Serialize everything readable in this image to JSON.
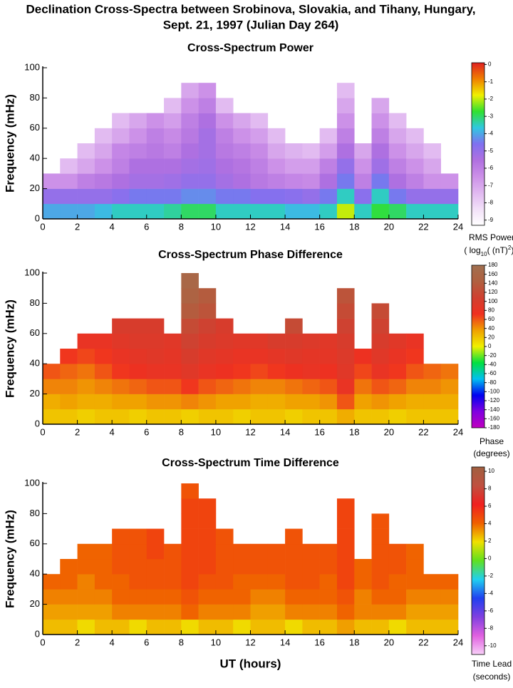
{
  "title": [
    "Declination Cross-Spectra between Srobinova, Slovakia, and Tihany, Hungary,",
    "Sept. 21, 1997 (Julian Day 264)"
  ],
  "chart_data": [
    {
      "type": "heatmap",
      "title": "Cross-Spectrum Power",
      "ylabel": "Frequency (mHz)",
      "xlim": [
        0,
        24
      ],
      "xticks": [
        0,
        2,
        4,
        6,
        8,
        10,
        12,
        14,
        16,
        18,
        20,
        22,
        24
      ],
      "ylim": [
        0,
        100
      ],
      "yticks": [
        0,
        20,
        40,
        60,
        80,
        100
      ],
      "zlim": [
        -9.3,
        0.1
      ],
      "zticks": [
        0,
        -1,
        -2,
        -3,
        -4,
        -5,
        -6,
        -7,
        -8,
        -9
      ],
      "colormap": [
        "#ffffff",
        "#f2e0f8",
        "#e0b8f0",
        "#cc90e8",
        "#b070e0",
        "#8070f0",
        "#30c8e0",
        "#30e030",
        "#f0f000",
        "#f08000",
        "#e02020"
      ],
      "colorbar_label": [
        "RMS Power",
        [
          "( log",
          "10",
          "( (nT)",
          "2",
          ") )"
        ]
      ],
      "z": [
        [
          -4,
          -4,
          -4,
          -3.8,
          -3.5,
          -3.5,
          -3.5,
          -3.3,
          -3,
          -3,
          -3.5,
          -3.5,
          -3.5,
          -3.5,
          -3.8,
          -3.8,
          -3.5,
          -2,
          -3.5,
          -2.8,
          -3,
          -3.5,
          -3.5,
          -3.5
        ],
        [
          -5,
          -5,
          -5,
          -5,
          -4.8,
          -4.5,
          -4.5,
          -4.5,
          -4.3,
          -4.3,
          -4.5,
          -4.5,
          -4.7,
          -4.7,
          -4.8,
          -5,
          -4.5,
          -3.5,
          -4.8,
          -3.5,
          -4.5,
          -5,
          -5,
          -5
        ],
        [
          -6.5,
          -6.5,
          -6,
          -5.8,
          -5.5,
          -5.3,
          -5.3,
          -5.2,
          -5,
          -5,
          -5.3,
          -5.5,
          -5.8,
          -6,
          -6.2,
          -6.3,
          -5.5,
          -4.5,
          -6,
          -4.5,
          -5.5,
          -6,
          -6.5,
          -6.5
        ],
        [
          null,
          -7.5,
          -7,
          -6.5,
          -6,
          -5.5,
          -5.5,
          -5.5,
          -5.3,
          -5.2,
          -5.5,
          -5.7,
          -6,
          -6.5,
          -6.8,
          -6.8,
          -6,
          -5,
          -6.5,
          -5.2,
          -6,
          -6.5,
          -7,
          null
        ],
        [
          null,
          null,
          -7.5,
          -7,
          -6.2,
          -6,
          -5.8,
          -6,
          -5.5,
          -5.3,
          -5.8,
          -6,
          -6.3,
          -7,
          -7.3,
          -7.5,
          -6.8,
          -5.5,
          -7,
          -5.5,
          -6.5,
          -7,
          -7.5,
          null
        ],
        [
          null,
          null,
          null,
          -7.5,
          -7,
          -6.5,
          -6,
          -6.3,
          -5.8,
          -5.3,
          -6,
          -6.5,
          -6.8,
          -7.5,
          null,
          null,
          -7.5,
          -6,
          null,
          -6,
          -7,
          -7.5,
          null,
          null
        ],
        [
          null,
          null,
          null,
          null,
          -7.5,
          -7,
          -6.5,
          -6.8,
          -6,
          -5.5,
          -6.5,
          -7,
          -7.5,
          null,
          null,
          null,
          null,
          -6.5,
          null,
          -6.5,
          -7.5,
          null,
          null,
          null
        ],
        [
          null,
          null,
          null,
          null,
          null,
          null,
          null,
          -7.5,
          -6.5,
          -6,
          -7.5,
          null,
          null,
          null,
          null,
          null,
          null,
          -7,
          null,
          -7,
          null,
          null,
          null,
          null
        ],
        [
          null,
          null,
          null,
          null,
          null,
          null,
          null,
          null,
          -7,
          -6.5,
          null,
          null,
          null,
          null,
          null,
          null,
          null,
          -7.5,
          null,
          null,
          null,
          null,
          null,
          null
        ],
        [
          null,
          null,
          null,
          null,
          null,
          null,
          null,
          null,
          null,
          null,
          null,
          null,
          null,
          null,
          null,
          null,
          null,
          null,
          null,
          null,
          null,
          null,
          null,
          null
        ]
      ]
    },
    {
      "type": "heatmap",
      "title": "Cross-Spectrum Phase Difference",
      "ylabel": "Frequency (mHz)",
      "xlim": [
        0,
        24
      ],
      "xticks": [
        0,
        2,
        4,
        6,
        8,
        10,
        12,
        14,
        16,
        18,
        20,
        22,
        24
      ],
      "ylim": [
        0,
        100
      ],
      "yticks": [
        0,
        20,
        40,
        60,
        80,
        100
      ],
      "zlim": [
        -180,
        180
      ],
      "zticks": [
        180,
        160,
        140,
        120,
        100,
        80,
        60,
        40,
        20,
        0,
        -20,
        -40,
        -60,
        -80,
        -100,
        -120,
        -140,
        -160,
        -180
      ],
      "colormap": [
        "#c000c0",
        "#8000e0",
        "#0000f0",
        "#00c0f0",
        "#00e040",
        "#f0f000",
        "#f0a000",
        "#f03020",
        "#d04030",
        "#b06040",
        "#a07050"
      ],
      "colorbar_label": [
        "Phase",
        "(degrees)"
      ],
      "z": [
        [
          20,
          20,
          15,
          20,
          20,
          15,
          20,
          20,
          15,
          20,
          20,
          15,
          20,
          20,
          15,
          20,
          20,
          30,
          20,
          20,
          15,
          20,
          20,
          20
        ],
        [
          30,
          35,
          30,
          30,
          35,
          35,
          40,
          40,
          45,
          40,
          35,
          35,
          30,
          30,
          35,
          35,
          40,
          60,
          35,
          40,
          35,
          30,
          30,
          30
        ],
        [
          45,
          45,
          40,
          45,
          50,
          55,
          60,
          60,
          70,
          60,
          55,
          50,
          45,
          45,
          50,
          55,
          60,
          80,
          50,
          60,
          55,
          45,
          45,
          40
        ],
        [
          60,
          55,
          50,
          60,
          70,
          75,
          80,
          80,
          90,
          80,
          75,
          70,
          65,
          70,
          75,
          80,
          75,
          90,
          65,
          80,
          70,
          60,
          55,
          50
        ],
        [
          null,
          70,
          65,
          70,
          80,
          85,
          90,
          85,
          100,
          90,
          85,
          80,
          80,
          85,
          90,
          85,
          85,
          95,
          75,
          90,
          80,
          70,
          null,
          null
        ],
        [
          null,
          null,
          80,
          80,
          90,
          95,
          95,
          90,
          110,
          100,
          95,
          90,
          90,
          100,
          100,
          95,
          90,
          100,
          null,
          100,
          90,
          80,
          null,
          null
        ],
        [
          null,
          null,
          null,
          null,
          100,
          100,
          100,
          null,
          120,
          110,
          100,
          null,
          null,
          null,
          120,
          null,
          null,
          110,
          null,
          110,
          null,
          null,
          null,
          null
        ],
        [
          null,
          null,
          null,
          null,
          null,
          null,
          null,
          null,
          140,
          130,
          null,
          null,
          null,
          null,
          null,
          null,
          null,
          120,
          null,
          120,
          null,
          null,
          null,
          null
        ],
        [
          null,
          null,
          null,
          null,
          null,
          null,
          null,
          null,
          150,
          140,
          null,
          null,
          null,
          null,
          null,
          null,
          null,
          130,
          null,
          null,
          null,
          null,
          null,
          null
        ],
        [
          null,
          null,
          null,
          null,
          null,
          null,
          null,
          null,
          160,
          null,
          null,
          null,
          null,
          null,
          null,
          null,
          null,
          null,
          null,
          null,
          null,
          null,
          null,
          null
        ]
      ]
    },
    {
      "type": "heatmap",
      "title": "Cross-Spectrum Time Difference",
      "ylabel": "Frequency (mHz)",
      "xlabel": "UT (hours)",
      "xlim": [
        0,
        24
      ],
      "xticks": [
        0,
        2,
        4,
        6,
        8,
        10,
        12,
        14,
        16,
        18,
        20,
        22,
        24
      ],
      "ylim": [
        0,
        100
      ],
      "yticks": [
        0,
        20,
        40,
        60,
        80,
        100
      ],
      "zlim": [
        -11,
        10.5
      ],
      "zticks": [
        10,
        8,
        6,
        4,
        2,
        0,
        -2,
        -4,
        -6,
        -8,
        -10
      ],
      "colormap": [
        "#f8d0f8",
        "#e060e0",
        "#8040e0",
        "#2040f0",
        "#20d0f0",
        "#60e020",
        "#f0e000",
        "#f06000",
        "#f02020",
        "#c05040",
        "#a06040"
      ],
      "colorbar_label": [
        "Time Lead",
        "(seconds)"
      ],
      "z": [
        [
          2.5,
          2.5,
          2,
          2.5,
          2.5,
          2,
          2.5,
          2.5,
          2,
          2.5,
          2.5,
          2,
          2.5,
          2.5,
          2,
          2.5,
          2.5,
          3,
          2.5,
          2.5,
          2,
          2.5,
          2.5,
          2.5
        ],
        [
          3,
          3,
          3,
          3,
          3.5,
          3.5,
          3.5,
          3.5,
          4,
          3.5,
          3.5,
          3.5,
          3,
          3,
          3.5,
          3.5,
          3.5,
          4,
          3.5,
          3.5,
          3.5,
          3,
          3,
          3
        ],
        [
          3.5,
          3.5,
          3.5,
          3.5,
          4,
          4,
          4,
          4,
          4.5,
          4,
          4,
          4,
          3.5,
          3.5,
          4,
          4,
          4,
          4.5,
          3.5,
          4,
          4,
          3.5,
          3.5,
          3.5
        ],
        [
          4,
          4,
          3.5,
          4,
          4,
          4.5,
          4.5,
          4.5,
          5,
          4.5,
          4.5,
          4,
          4,
          4,
          4.5,
          4.5,
          4,
          5,
          4,
          4.5,
          4,
          4,
          4,
          4
        ],
        [
          null,
          4,
          4,
          4,
          4.5,
          4.5,
          4.5,
          4.5,
          5,
          5,
          4.5,
          4.5,
          4.5,
          4.5,
          4.5,
          4.5,
          4.5,
          5,
          4,
          4.5,
          4.5,
          4,
          null,
          null
        ],
        [
          null,
          null,
          4,
          4,
          4.5,
          4.5,
          5,
          4.5,
          5,
          5,
          4.5,
          4.5,
          4.5,
          4.5,
          4.5,
          4.5,
          4.5,
          5,
          null,
          4.5,
          4.5,
          4,
          null,
          null
        ],
        [
          null,
          null,
          null,
          null,
          4.5,
          4.5,
          5,
          null,
          5,
          5,
          4.5,
          null,
          null,
          null,
          4.5,
          null,
          null,
          5,
          null,
          4.5,
          null,
          null,
          null,
          null
        ],
        [
          null,
          null,
          null,
          null,
          null,
          null,
          null,
          null,
          5,
          5,
          null,
          null,
          null,
          null,
          null,
          null,
          null,
          5,
          null,
          4.5,
          null,
          null,
          null,
          null
        ],
        [
          null,
          null,
          null,
          null,
          null,
          null,
          null,
          null,
          5,
          5,
          null,
          null,
          null,
          null,
          null,
          null,
          null,
          5,
          null,
          null,
          null,
          null,
          null,
          null
        ],
        [
          null,
          null,
          null,
          null,
          null,
          null,
          null,
          null,
          4.5,
          null,
          null,
          null,
          null,
          null,
          null,
          null,
          null,
          null,
          null,
          null,
          null,
          null,
          null,
          null
        ]
      ]
    }
  ]
}
